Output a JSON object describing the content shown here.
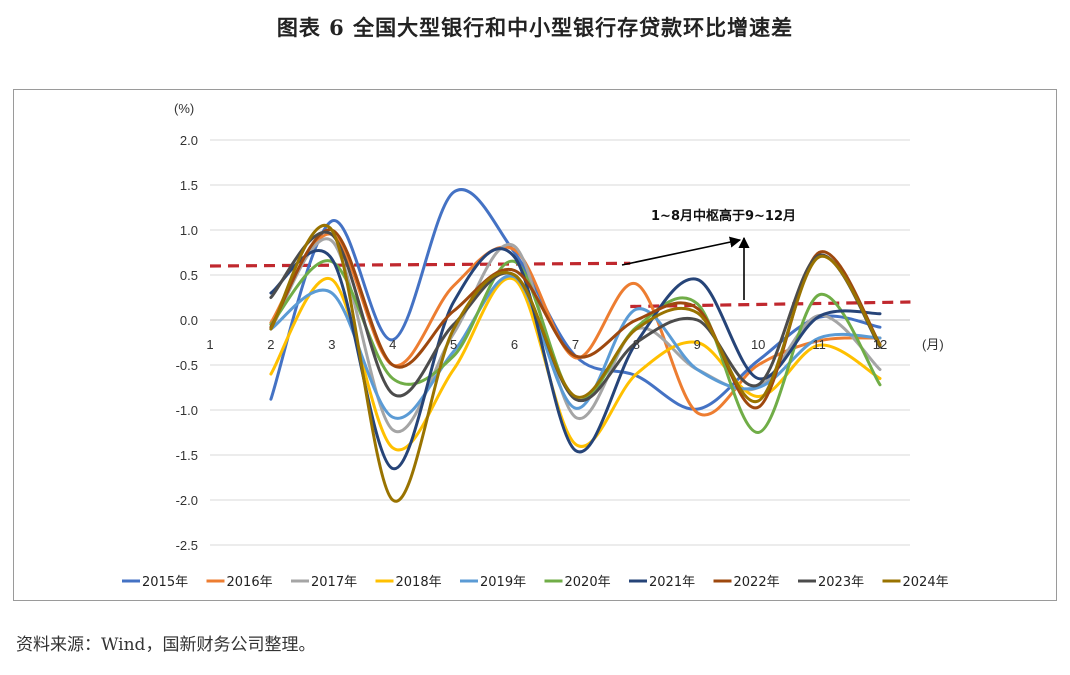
{
  "title": "图表 6  全国大型银行和中小型银行存贷款环比增速差",
  "source": "资料来源：Wind，国新财务公司整理。",
  "chart_data": {
    "type": "line",
    "ylabel": "(%)",
    "xunit": "(月)",
    "x": [
      2,
      3,
      4,
      5,
      6,
      7,
      8,
      9,
      10,
      11,
      12
    ],
    "xlim": [
      1,
      12
    ],
    "x_ticks": [
      "1",
      "2",
      "3",
      "4",
      "5",
      "6",
      "7",
      "8",
      "9",
      "10",
      "11",
      "12"
    ],
    "ylim": [
      -2.5,
      2.0
    ],
    "y_ticks": [
      "2.0",
      "1.5",
      "1.0",
      "0.5",
      "0.0",
      "-0.5",
      "-1.0",
      "-1.5",
      "-2.0",
      "-2.5"
    ],
    "grid": true,
    "legend_position": "bottom",
    "series": [
      {
        "name": "2015年",
        "color": "#4472C4",
        "values": [
          -0.88,
          1.1,
          -0.22,
          1.42,
          0.75,
          -0.4,
          -0.62,
          -0.99,
          -0.45,
          0.03,
          -0.08
        ]
      },
      {
        "name": "2016年",
        "color": "#ED7D31",
        "values": [
          -0.03,
          0.95,
          -0.5,
          0.38,
          0.78,
          -0.42,
          0.4,
          -1.03,
          -0.5,
          -0.23,
          -0.2
        ]
      },
      {
        "name": "2017年",
        "color": "#A5A5A5",
        "values": [
          -0.1,
          0.88,
          -1.22,
          -0.15,
          0.82,
          -1.08,
          -0.1,
          -0.55,
          -0.75,
          0.05,
          -0.55
        ]
      },
      {
        "name": "2018年",
        "color": "#FFC000",
        "values": [
          -0.6,
          0.45,
          -1.42,
          -0.55,
          0.45,
          -1.38,
          -0.6,
          -0.25,
          -0.85,
          -0.28,
          -0.65
        ]
      },
      {
        "name": "2019年",
        "color": "#5B9BD5",
        "values": [
          -0.1,
          0.3,
          -1.08,
          -0.35,
          0.48,
          -0.98,
          0.12,
          -0.55,
          -0.75,
          -0.2,
          -0.2
        ]
      },
      {
        "name": "2020年",
        "color": "#70AD47",
        "values": [
          -0.05,
          0.65,
          -0.65,
          -0.4,
          0.65,
          -0.88,
          -0.08,
          0.18,
          -1.25,
          0.28,
          -0.72
        ]
      },
      {
        "name": "2021年",
        "color": "#264478",
        "values": [
          0.3,
          0.68,
          -1.65,
          0.2,
          0.7,
          -1.45,
          -0.25,
          0.45,
          -0.65,
          0.04,
          0.07
        ]
      },
      {
        "name": "2022年",
        "color": "#9E480E",
        "values": [
          -0.08,
          1.0,
          -0.5,
          0.1,
          0.55,
          -0.4,
          0.0,
          0.13,
          -0.97,
          0.75,
          -0.27
        ]
      },
      {
        "name": "2023年",
        "color": "#4C4C4C",
        "values": [
          0.25,
          0.95,
          -0.82,
          -0.05,
          0.5,
          -0.88,
          -0.25,
          0.0,
          -0.72,
          0.72,
          -0.3
        ]
      },
      {
        "name": "2024年",
        "color": "#997300",
        "values": [
          -0.1,
          1.0,
          -2.0,
          -0.1,
          0.5,
          -0.85,
          -0.1,
          0.08,
          -0.9,
          0.7,
          -0.28
        ]
      }
    ],
    "reference_lines": [
      {
        "from_x": 1,
        "to_x": 7.9,
        "from_y": 0.6,
        "to_y": 0.63,
        "color": "#C0282E"
      },
      {
        "from_x": 7.9,
        "to_x": 12.5,
        "from_y": 0.15,
        "to_y": 0.2,
        "color": "#C0282E"
      }
    ],
    "annotation": "1~8月中枢高于9~12月"
  }
}
